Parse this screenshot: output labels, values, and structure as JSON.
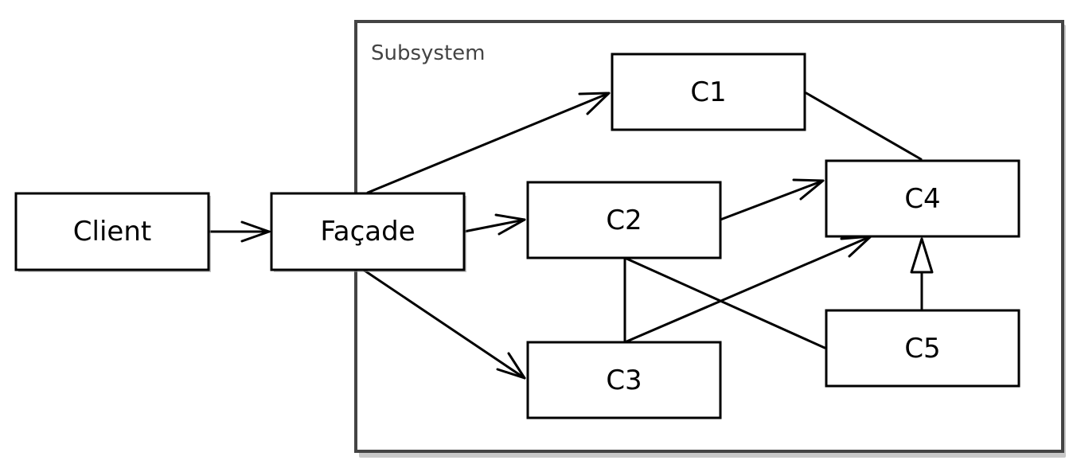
{
  "diagram": {
    "subsystem": {
      "label": "Subsystem"
    },
    "nodes": [
      {
        "id": "client",
        "label": "Client"
      },
      {
        "id": "facade",
        "label": "Façade"
      },
      {
        "id": "c1",
        "label": "C1"
      },
      {
        "id": "c2",
        "label": "C2"
      },
      {
        "id": "c3",
        "label": "C3"
      },
      {
        "id": "c4",
        "label": "C4"
      },
      {
        "id": "c5",
        "label": "C5"
      }
    ],
    "edges": [
      {
        "from": "client",
        "to": "facade",
        "type": "directed"
      },
      {
        "from": "facade",
        "to": "c1",
        "type": "directed"
      },
      {
        "from": "facade",
        "to": "c2",
        "type": "directed"
      },
      {
        "from": "facade",
        "to": "c3",
        "type": "directed"
      },
      {
        "from": "c2",
        "to": "c4",
        "type": "directed"
      },
      {
        "from": "c3",
        "to": "c4",
        "type": "directed"
      },
      {
        "from": "c1",
        "to": "c4",
        "type": "association"
      },
      {
        "from": "c2",
        "to": "c3",
        "type": "association"
      },
      {
        "from": "c2",
        "to": "c5",
        "type": "association"
      },
      {
        "from": "c5",
        "to": "c4",
        "type": "generalization"
      }
    ]
  }
}
